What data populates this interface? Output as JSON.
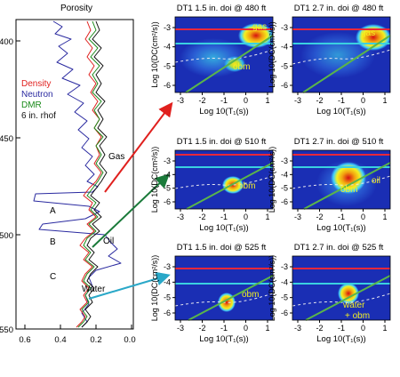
{
  "log": {
    "title": "Porosity",
    "legend": [
      {
        "label": "Density",
        "color": "#e0201e"
      },
      {
        "label": "Neutron",
        "color": "#2a2aa0"
      },
      {
        "label": "DMR",
        "color": "#1a8a1a"
      },
      {
        "label": "6 in. rhof",
        "color": "#111111"
      }
    ],
    "depth_ticks": [
      "400",
      "450",
      "500",
      "550"
    ],
    "porosity_ticks": [
      "0.6",
      "0.4",
      "0.2",
      "0.0"
    ],
    "zones": [
      "A",
      "B",
      "C"
    ],
    "fluids": [
      "Gas",
      "Oil",
      "Water"
    ]
  },
  "panels": [
    {
      "title": "DT1 1.5 in. doi @ 480 ft",
      "labels": [
        "gas",
        "obm"
      ]
    },
    {
      "title": "DT1 2.7 in. doi @ 480 ft",
      "labels": [
        "gas"
      ]
    },
    {
      "title": "DT1 1.5 in. doi @ 510 ft",
      "labels": [
        "obm"
      ]
    },
    {
      "title": "DT1 2.7 in. doi @ 510 ft",
      "labels": [
        "obm",
        "oil"
      ]
    },
    {
      "title": "DT1 1.5 in. doi @ 525 ft",
      "labels": [
        "obm"
      ]
    },
    {
      "title": "DT1 2.7 in. doi @ 525 ft",
      "labels": [
        "water",
        "+ obm"
      ]
    }
  ],
  "axes": {
    "xlabel": "Log 10(T₁(s))",
    "ylabel": "Log 10(DC(cm²/s))",
    "xticks": [
      "-3",
      "-2",
      "-1",
      "0",
      "1"
    ],
    "yticks": [
      "-3",
      "-4",
      "-5",
      "-6"
    ]
  },
  "colors": {
    "plot_bg": "#1a2eb4",
    "red_line": "#e8283a",
    "cyan_line": "#3ad0e0",
    "green_line": "#5ab54a",
    "arrow_red": "#e0201e",
    "arrow_green": "#1a7a3a",
    "arrow_cyan": "#2aa8c8"
  }
}
